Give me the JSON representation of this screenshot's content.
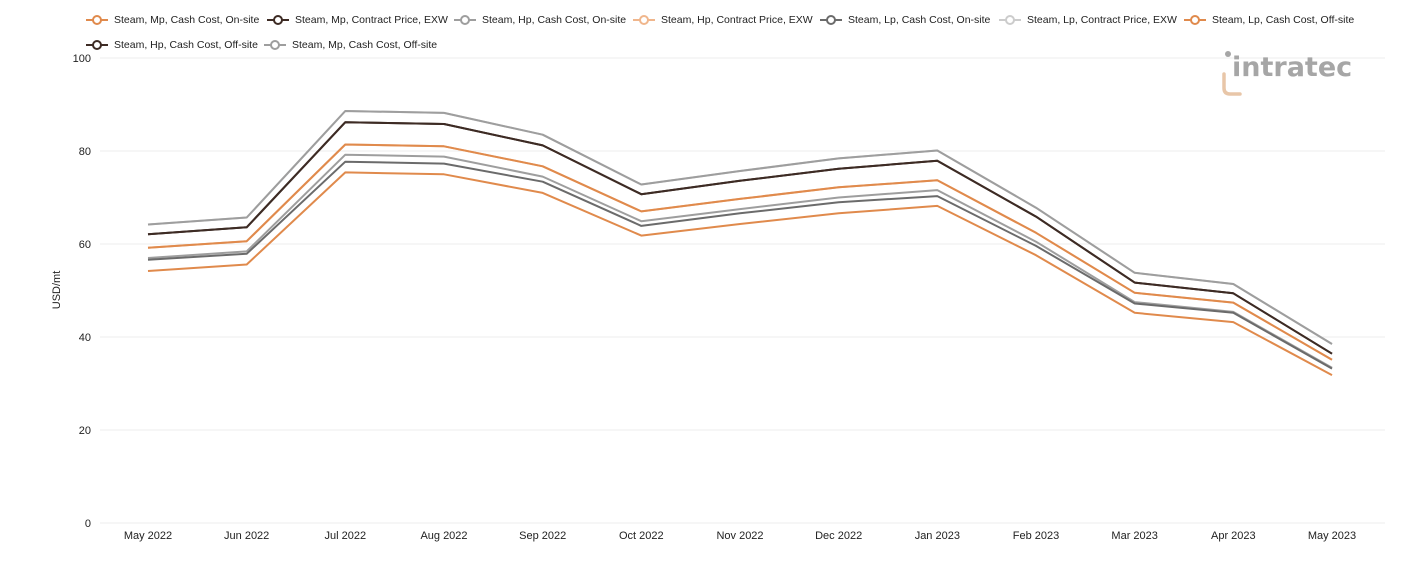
{
  "logo_text": "intratec",
  "chart_data": {
    "type": "line",
    "ylabel": "USD/mt",
    "xlabel": "",
    "ylim": [
      0,
      100
    ],
    "yticks": [
      0,
      20,
      40,
      60,
      80,
      100
    ],
    "grid": true,
    "legend_position": "top",
    "categories": [
      "May 2022",
      "Jun 2022",
      "Jul 2022",
      "Aug 2022",
      "Sep 2022",
      "Oct 2022",
      "Nov 2022",
      "Dec 2022",
      "Jan 2023",
      "Feb 2023",
      "Mar 2023",
      "Apr 2023",
      "May 2023"
    ],
    "series": [
      {
        "name": "Steam, Mp, Cash Cost, On-site",
        "color": "#e08a4c",
        "values": [
          54.2,
          55.6,
          75.4,
          75.0,
          71.0,
          61.8,
          64.3,
          66.6,
          68.2,
          57.6,
          45.2,
          43.2,
          31.8
        ]
      },
      {
        "name": "Steam, Mp, Contract Price, EXW",
        "color": "#3d2b24",
        "values": [
          62.1,
          63.6,
          86.2,
          85.8,
          81.2,
          70.7,
          73.6,
          76.2,
          77.9,
          65.9,
          51.7,
          49.4,
          36.4
        ]
      },
      {
        "name": "Steam, Hp, Cash Cost, On-site",
        "color": "#9e9e9e",
        "values": [
          57.0,
          58.4,
          79.2,
          78.8,
          74.5,
          64.9,
          67.5,
          70.0,
          71.6,
          60.5,
          47.5,
          45.4,
          33.4
        ]
      },
      {
        "name": "Steam, Hp, Contract Price, EXW",
        "color": "#f0b68c",
        "values": [
          59.2,
          60.6,
          81.4,
          81.0,
          76.7,
          67.0,
          69.7,
          72.2,
          73.7,
          62.4,
          49.5,
          47.4,
          35.1
        ]
      },
      {
        "name": "Steam, Lp, Cash Cost, On-site",
        "color": "#6b6b6b",
        "values": [
          56.6,
          57.9,
          77.7,
          77.3,
          73.4,
          63.9,
          66.6,
          69.0,
          70.3,
          59.6,
          47.2,
          45.2,
          33.2
        ]
      },
      {
        "name": "Steam, Lp, Contract Price, EXW",
        "color": "#cccccc",
        "values": [
          64.2,
          65.7,
          88.6,
          88.2,
          83.5,
          72.8,
          75.7,
          78.4,
          80.1,
          67.8,
          53.8,
          51.4,
          38.5
        ]
      },
      {
        "name": "Steam, Lp, Cash Cost, Off-site",
        "color": "#e08a4c",
        "values": [
          59.2,
          60.6,
          81.4,
          81.0,
          76.7,
          67.0,
          69.7,
          72.2,
          73.7,
          62.4,
          49.5,
          47.4,
          35.1
        ]
      },
      {
        "name": "Steam, Hp, Cash Cost, Off-site",
        "color": "#3d2b24",
        "values": [
          62.1,
          63.6,
          86.2,
          85.8,
          81.2,
          70.7,
          73.6,
          76.2,
          77.9,
          65.9,
          51.7,
          49.4,
          36.4
        ]
      },
      {
        "name": "Steam, Mp, Cash Cost, Off-site",
        "color": "#9e9e9e",
        "values": [
          64.2,
          65.7,
          88.6,
          88.2,
          83.5,
          72.8,
          75.7,
          78.4,
          80.1,
          67.8,
          53.8,
          51.4,
          38.5
        ]
      }
    ]
  }
}
